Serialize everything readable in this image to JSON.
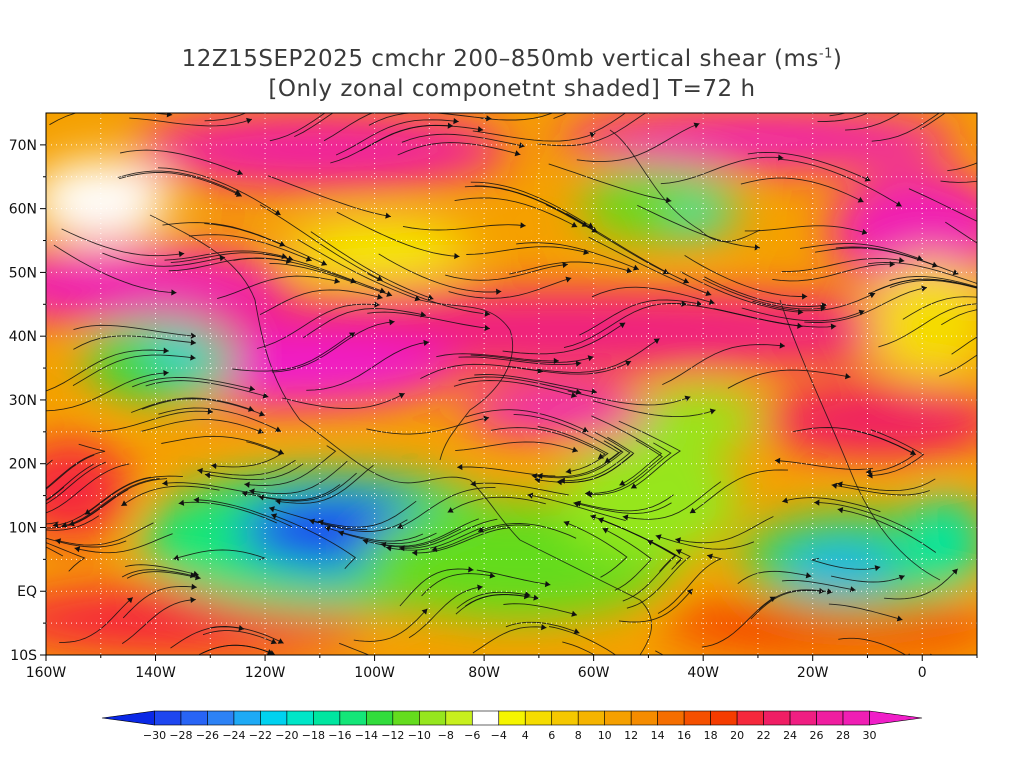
{
  "title": {
    "line1_prefix": "12Z15SEP2025 cmchr 200–850mb vertical shear (ms",
    "line1_sup": "-1",
    "line1_suffix": ")",
    "line2": "[Only zonal componetnt shaded] T=72 h"
  },
  "map": {
    "lat_labels": [
      "70N",
      "60N",
      "50N",
      "40N",
      "30N",
      "20N",
      "10N",
      "EQ",
      "10S"
    ],
    "lat_values": [
      70,
      60,
      50,
      40,
      30,
      20,
      10,
      0,
      -10
    ],
    "lon_labels": [
      "160W",
      "140W",
      "120W",
      "100W",
      "80W",
      "60W",
      "40W",
      "20W",
      "0"
    ],
    "lon_values": [
      -160,
      -140,
      -120,
      -100,
      -80,
      -60,
      -40,
      -20,
      0
    ],
    "lon_range": [
      -160,
      10
    ],
    "lat_range": [
      -10,
      75
    ]
  },
  "colorbar": {
    "labels": [
      "-30",
      "-28",
      "-26",
      "-24",
      "-22",
      "-20",
      "-18",
      "-16",
      "-14",
      "-12",
      "-10",
      "-8",
      "-6",
      "-4",
      "4",
      "6",
      "8",
      "10",
      "12",
      "14",
      "16",
      "18",
      "20",
      "22",
      "24",
      "26",
      "28",
      "30"
    ],
    "colors": [
      "#0a28e6",
      "#1e46f0",
      "#2864f5",
      "#2d82f5",
      "#1eaaf5",
      "#00d2f0",
      "#00e6c8",
      "#00e6a0",
      "#14e678",
      "#32dc3c",
      "#64dc1e",
      "#96e61e",
      "#c8f01e",
      "#ffffff",
      "#f5f500",
      "#f5dc00",
      "#f5c800",
      "#f5b400",
      "#f5a000",
      "#f58c00",
      "#f56e00",
      "#f55000",
      "#f53c00",
      "#f5283c",
      "#f01e64",
      "#f01e82",
      "#f01ea0",
      "#f01eb4",
      "#f01ec8"
    ]
  }
}
